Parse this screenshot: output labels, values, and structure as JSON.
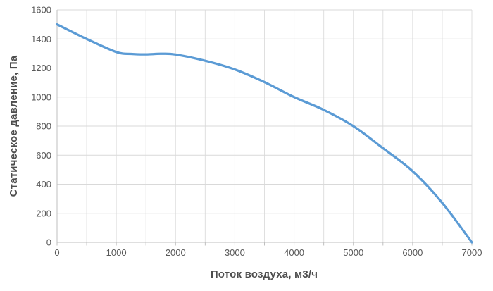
{
  "chart_data": {
    "type": "line",
    "title": "",
    "xlabel": "Поток воздуха, м3/ч",
    "ylabel": "Статическое давление, Па",
    "xlim": [
      0,
      7000
    ],
    "ylim": [
      0,
      1600
    ],
    "x_tick_labels": [
      0,
      1000,
      2000,
      3000,
      4000,
      5000,
      6000,
      7000
    ],
    "x_minor_tick_step": 500,
    "y_tick_labels": [
      0,
      200,
      400,
      600,
      800,
      1000,
      1200,
      1400,
      1600
    ],
    "grid": true,
    "legend_visible": false,
    "series": [
      {
        "name": "fan-static-pressure-curve",
        "color": "#5B9BD5",
        "stroke_width": 3.25,
        "x": [
          0,
          500,
          1000,
          1250,
          1500,
          1750,
          2000,
          2500,
          3000,
          3500,
          4000,
          4500,
          5000,
          5500,
          6000,
          6500,
          7000
        ],
        "y": [
          1500,
          1400,
          1310,
          1297,
          1294,
          1298,
          1293,
          1250,
          1190,
          1103,
          1000,
          912,
          800,
          648,
          490,
          272,
          0
        ]
      }
    ],
    "style": {
      "h_gridline_color": "#d9d9d9",
      "v_gridline_color": "#dfdfdf",
      "axis_line_color": "#bfbfbf",
      "tick_label_color": "#595959",
      "axis_title_color": "#4d4d4d",
      "background_color": "#ffffff"
    }
  }
}
